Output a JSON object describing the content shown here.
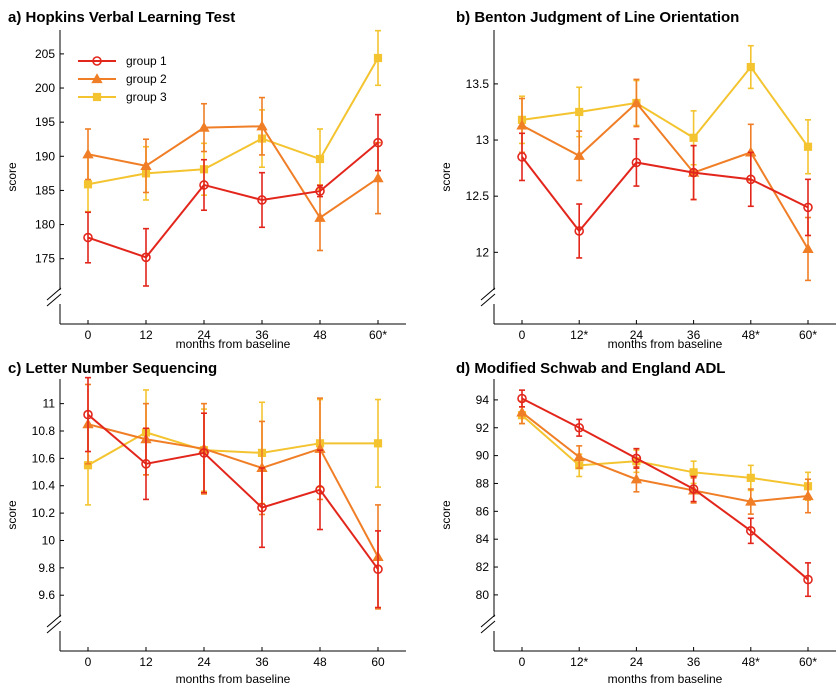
{
  "legend": {
    "entries": [
      {
        "label": "group 1",
        "color": "#e3261c",
        "marker": "circle"
      },
      {
        "label": "group 2",
        "color": "#f07e26",
        "marker": "triangle"
      },
      {
        "label": "group 3",
        "color": "#f4c430",
        "marker": "square"
      }
    ]
  },
  "chart_data": [
    {
      "type": "line",
      "title": "a) Hopkins Verbal Learning Test",
      "xlabel": "months from baseline",
      "ylabel": "score",
      "categories": [
        "0",
        "12",
        "24",
        "36",
        "48",
        "60*"
      ],
      "ylim": [
        171,
        208.5
      ],
      "yticks": [
        175,
        180,
        185,
        190,
        195,
        200,
        205
      ],
      "legend_position": "top-left",
      "series": [
        {
          "name": "group 1",
          "values": [
            178.1,
            175.2,
            185.8,
            183.6,
            184.9,
            192.0
          ],
          "err": [
            3.7,
            4.2,
            3.7,
            4.0,
            0.8,
            4.1
          ]
        },
        {
          "name": "group 2",
          "values": [
            190.3,
            188.6,
            194.2,
            194.4,
            181.0,
            186.8
          ],
          "err": [
            3.7,
            3.9,
            3.5,
            4.2,
            4.8,
            5.2
          ]
        },
        {
          "name": "group 3",
          "values": [
            185.9,
            187.5,
            188.1,
            192.6,
            189.6,
            204.4
          ],
          "err": [
            4.0,
            3.9,
            3.8,
            4.2,
            4.4,
            4.0
          ]
        }
      ]
    },
    {
      "type": "line",
      "title": "b) Benton Judgment of Line Orientation",
      "xlabel": "months from baseline",
      "ylabel": "score",
      "categories": [
        "0",
        "12*",
        "24",
        "36",
        "48*",
        "60*"
      ],
      "ylim": [
        11.7,
        13.98
      ],
      "yticks": [
        12,
        12.5,
        13,
        13.5
      ],
      "series": [
        {
          "name": "group 1",
          "values": [
            12.85,
            12.19,
            12.8,
            12.71,
            12.65,
            12.4
          ],
          "err": [
            0.21,
            0.24,
            0.21,
            0.24,
            0.24,
            0.25
          ]
        },
        {
          "name": "group 2",
          "values": [
            13.13,
            12.86,
            13.33,
            12.71,
            12.89,
            12.03
          ],
          "err": [
            0.24,
            0.22,
            0.21,
            0.24,
            0.25,
            0.28
          ]
        },
        {
          "name": "group 3",
          "values": [
            13.18,
            13.25,
            13.33,
            13.02,
            13.65,
            12.94
          ],
          "err": [
            0.21,
            0.22,
            0.2,
            0.24,
            0.19,
            0.24
          ]
        }
      ]
    },
    {
      "type": "line",
      "title": "c) Letter Number Sequencing",
      "xlabel": "months from baseline",
      "ylabel": "score",
      "categories": [
        "0",
        "12",
        "24",
        "36",
        "48",
        "60"
      ],
      "ylim": [
        9.47,
        11.18
      ],
      "yticks": [
        9.6,
        9.8,
        10,
        10.2,
        10.4,
        10.6,
        10.8,
        11
      ],
      "series": [
        {
          "name": "group 1",
          "values": [
            10.92,
            10.56,
            10.64,
            10.24,
            10.37,
            9.79
          ],
          "err": [
            0.27,
            0.26,
            0.29,
            0.29,
            0.29,
            0.28
          ]
        },
        {
          "name": "group 2",
          "values": [
            10.85,
            10.74,
            10.67,
            10.53,
            10.67,
            9.88
          ],
          "err": [
            0.29,
            0.26,
            0.33,
            0.34,
            0.37,
            0.38
          ]
        },
        {
          "name": "group 3",
          "values": [
            10.55,
            10.79,
            10.66,
            10.64,
            10.71,
            10.71
          ],
          "err": [
            0.29,
            0.31,
            0.3,
            0.37,
            0.32,
            0.32
          ]
        }
      ]
    },
    {
      "type": "line",
      "title": "d) Modified Schwab and England ADL",
      "xlabel": "months from baseline",
      "ylabel": "score",
      "categories": [
        "0",
        "12*",
        "24",
        "36",
        "48*",
        "60*"
      ],
      "ylim": [
        78.7,
        95.5
      ],
      "yticks": [
        80,
        82,
        84,
        86,
        88,
        90,
        92,
        94
      ],
      "series": [
        {
          "name": "group 1",
          "values": [
            94.1,
            92.0,
            89.8,
            87.6,
            84.6,
            81.1
          ],
          "err": [
            0.6,
            0.6,
            0.7,
            0.9,
            0.9,
            1.2
          ]
        },
        {
          "name": "group 2",
          "values": [
            93.1,
            89.9,
            88.3,
            87.5,
            86.7,
            87.1
          ],
          "err": [
            0.8,
            0.8,
            0.9,
            0.9,
            0.9,
            1.2
          ]
        },
        {
          "name": "group 3",
          "values": [
            92.9,
            89.3,
            89.6,
            88.8,
            88.4,
            87.8
          ],
          "err": [
            0.6,
            0.8,
            0.8,
            0.8,
            0.9,
            1.0
          ]
        }
      ]
    }
  ]
}
